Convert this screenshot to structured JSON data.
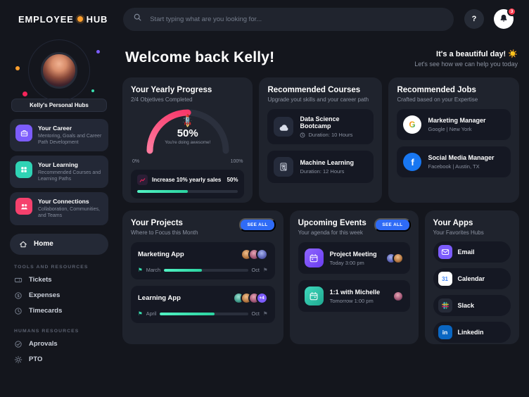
{
  "topbar": {
    "logo_left": "EMPLOYEE",
    "logo_right": "HUB",
    "search_placeholder": "Start typing what are you looking for...",
    "help_label": "?",
    "notification_count": "3"
  },
  "sidebar": {
    "profile_label": "Kelly's Personal Hubs",
    "hubs": [
      {
        "title": "Your Career",
        "desc": "Mentoring, Goals and Career Path Development"
      },
      {
        "title": "Your Learning",
        "desc": "Recommended Courses and Learning Paths"
      },
      {
        "title": "Your Connections",
        "desc": "Collaboration, Communities, and Teams"
      }
    ],
    "home_label": "Home",
    "sections": [
      {
        "label": "TOOLS AND RESOURCES",
        "items": [
          "Tickets",
          "Expenses",
          "Timecards"
        ]
      },
      {
        "label": "HUMANS RESOURCES",
        "items": [
          "Aprovals",
          "PTO"
        ]
      }
    ]
  },
  "main": {
    "welcome": "Welcome back Kelly!",
    "greeting_title": "It's a beautiful day!",
    "greeting_emoji": "☀️",
    "greeting_sub": "Let's see how we can help you today",
    "progress_card": {
      "title": "Your Yearly Progress",
      "subtitle": "2/4 Objetives Completed",
      "rocket": "🚀",
      "gauge_percent": 50,
      "percent_label": "50%",
      "note": "You're doing awesome!",
      "min": "0%",
      "max": "100%",
      "goal": {
        "label": "Increase 10% yearly sales",
        "value": "50%",
        "percent": 50
      }
    },
    "courses_card": {
      "title": "Recommended Courses",
      "subtitle": "Upgrade yout skills and your career path",
      "items": [
        {
          "title": "Data Science Bootcamp",
          "duration": "Duration: 10 Hours"
        },
        {
          "title": "Machine Learning",
          "duration": "Duration: 12 Hours"
        }
      ]
    },
    "jobs_card": {
      "title": "Recommended Jobs",
      "subtitle": "Crafted based on your Expertise",
      "items": [
        {
          "title": "Marketing Manager",
          "company": "Google | New York",
          "icon_letter": "G"
        },
        {
          "title": "Social Media Manager",
          "company": "Facebook | Austin, TX",
          "icon_letter": "f"
        }
      ]
    },
    "projects_card": {
      "title": "Your Projects",
      "subtitle": "Where to Focus this Month",
      "see_all": "SEE ALL",
      "items": [
        {
          "title": "Marketing App",
          "start": "March",
          "end": "Oct",
          "percent": 45
        },
        {
          "title": "Learning App",
          "start": "April",
          "end": "Oct",
          "percent": 62,
          "extra": "+4"
        }
      ]
    },
    "events_card": {
      "title": "Upcoming Events",
      "subtitle": "Your agenda for this week",
      "see_all": "SEE ALL",
      "items": [
        {
          "title": "Project Meeting",
          "time": "Today 3:00 pm"
        },
        {
          "title": "1:1 with Michelle",
          "time": "Tomorrow 1:00 pm"
        }
      ]
    },
    "apps_card": {
      "title": "Your Apps",
      "subtitle": "Your Favorites Hubs",
      "items": [
        {
          "label": "Email"
        },
        {
          "label": "Calendar",
          "icon_text": "31"
        },
        {
          "label": "Slack"
        },
        {
          "label": "Linkedin",
          "icon_text": "in"
        }
      ]
    }
  }
}
